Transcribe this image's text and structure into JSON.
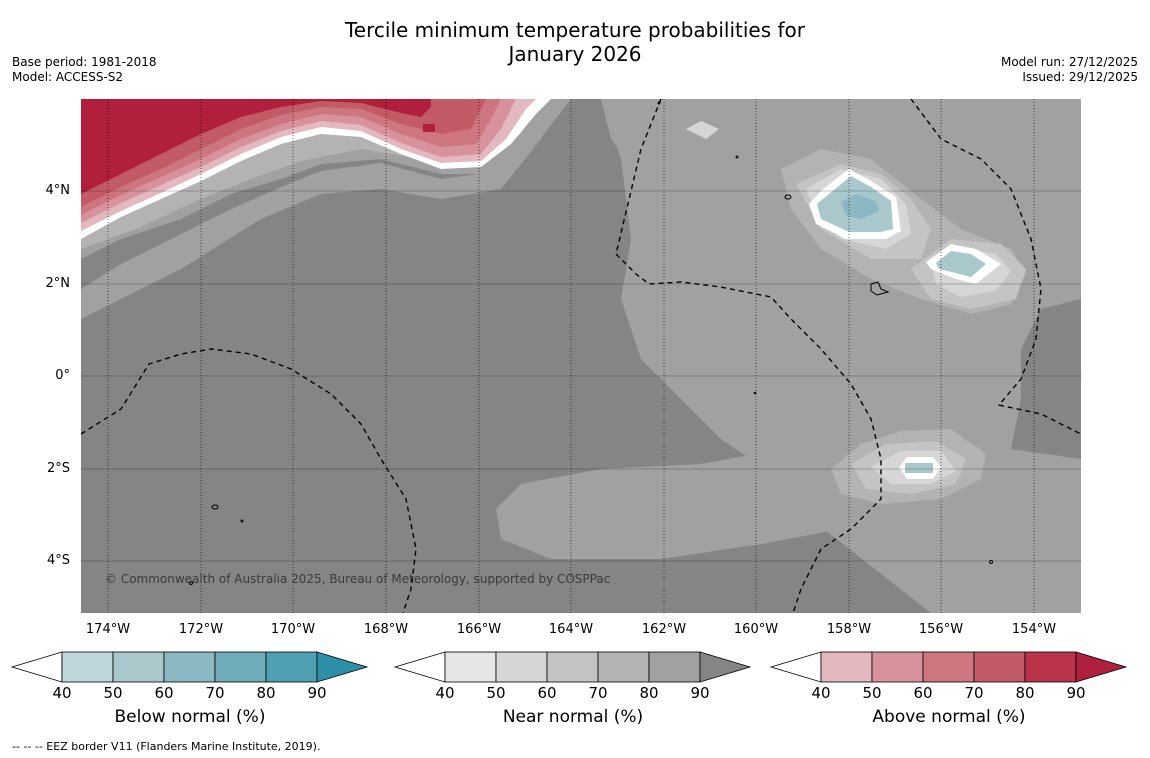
{
  "title": {
    "line1": "Tercile minimum temperature probabilities for",
    "line2": "January 2026"
  },
  "meta_left": {
    "base_period": "Base period: 1981-2018",
    "model": "Model: ACCESS-S2"
  },
  "meta_right": {
    "model_run": "Model run: 27/12/2025",
    "issued": "Issued: 29/12/2025"
  },
  "map": {
    "latitude_labels": [
      "4°N",
      "2°N",
      "0°",
      "2°S",
      "4°S"
    ],
    "longitude_labels": [
      "174°W",
      "172°W",
      "170°W",
      "168°W",
      "166°W",
      "164°W",
      "162°W",
      "160°W",
      "158°W",
      "156°W",
      "154°W"
    ],
    "copyright": "© Commonwealth of Australia 2025, Bureau of Meteorology, supported by COSPPac"
  },
  "colorbars": [
    {
      "label": "Below normal (%)",
      "ticks": [
        "40",
        "50",
        "60",
        "70",
        "80",
        "90"
      ],
      "colors": [
        "#ffffff",
        "#bfd6db",
        "#a8c8cc",
        "#8cb8c3",
        "#6eacba",
        "#4d9fb1",
        "#2e90a8"
      ]
    },
    {
      "label": "Near normal (%)",
      "ticks": [
        "40",
        "50",
        "60",
        "70",
        "80",
        "90"
      ],
      "colors": [
        "#ffffff",
        "#e6e6e6",
        "#d6d6d6",
        "#c4c4c4",
        "#b3b3b3",
        "#a1a1a1",
        "#858585"
      ]
    },
    {
      "label": "Above normal (%)",
      "ticks": [
        "40",
        "50",
        "60",
        "70",
        "80",
        "90"
      ],
      "colors": [
        "#ffffff",
        "#e3b8bf",
        "#d8929c",
        "#cd767f",
        "#c35a68",
        "#b9344a",
        "#b01f3b"
      ]
    }
  ],
  "footnote": "--  --  -- EEZ border V11 (Flanders Marine Institute, 2019)."
}
